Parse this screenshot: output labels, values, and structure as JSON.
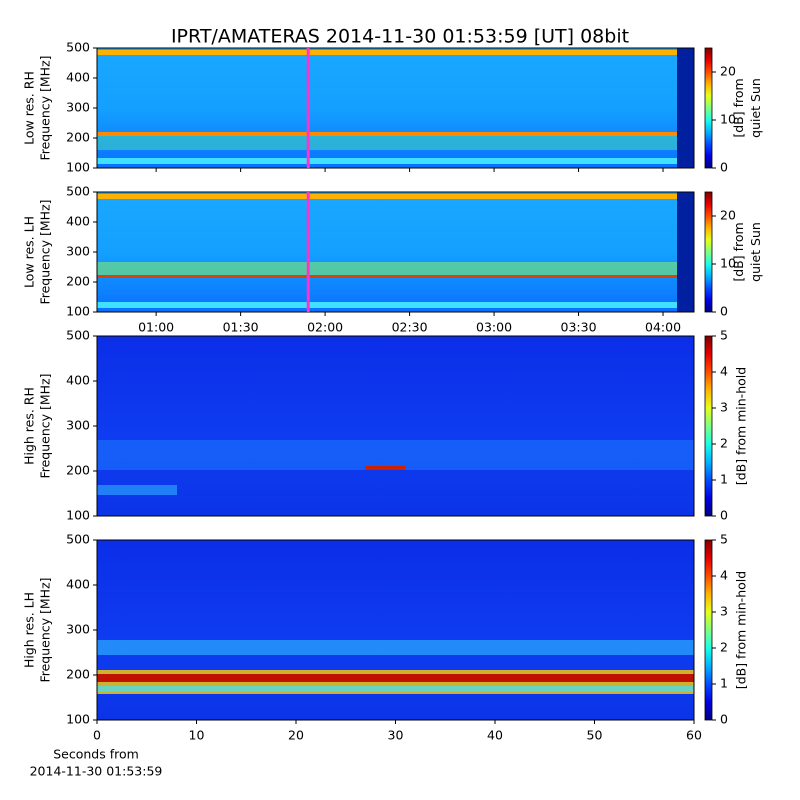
{
  "title": "IPRT/AMATERAS 2014-11-30 01:53:59 [UT]   08bit",
  "chart_data": [
    {
      "type": "heatmap",
      "ylabel": [
        "Low res. RH",
        "Frequency [MHz]"
      ],
      "ylim": [
        100,
        500
      ],
      "yticks": [
        100,
        200,
        300,
        400,
        500
      ],
      "xlim": [
        "00:39",
        "04:11"
      ],
      "cursor": "01:54",
      "cursor_color": "#ff33cc",
      "colormap": "jet",
      "clim": [
        0,
        25
      ],
      "cticks": [
        0,
        10,
        20
      ],
      "clabel": [
        "[dB] from",
        "quiet Sun"
      ]
    },
    {
      "type": "heatmap",
      "ylabel": [
        "Low res. LH",
        "Frequency [MHz]"
      ],
      "ylim": [
        100,
        500
      ],
      "yticks": [
        100,
        200,
        300,
        400,
        500
      ],
      "xlim": [
        "00:39",
        "04:11"
      ],
      "xticks": [
        "01:00",
        "01:30",
        "02:00",
        "02:30",
        "03:00",
        "03:30",
        "04:00"
      ],
      "cursor": "01:54",
      "cursor_color": "#ff33cc",
      "colormap": "jet",
      "clim": [
        0,
        25
      ],
      "cticks": [
        0,
        10,
        20
      ],
      "clabel": [
        "[dB] from",
        "quiet Sun"
      ]
    },
    {
      "type": "heatmap",
      "ylabel": [
        "High res. RH",
        "Frequency [MHz]"
      ],
      "ylim": [
        100,
        500
      ],
      "yticks": [
        100,
        200,
        300,
        400,
        500
      ],
      "colormap": "jet",
      "clim": [
        0,
        5
      ],
      "cticks": [
        0,
        1,
        2,
        3,
        4,
        5
      ],
      "clabel": [
        "[dB] from min-hold"
      ]
    },
    {
      "type": "heatmap",
      "ylabel": [
        "High res. LH",
        "Frequency [MHz]"
      ],
      "ylim": [
        100,
        500
      ],
      "yticks": [
        100,
        200,
        300,
        400,
        500
      ],
      "xlim": [
        0,
        60
      ],
      "xticks": [
        0,
        10,
        20,
        30,
        40,
        50,
        60
      ],
      "xlabel": [
        "Seconds from",
        "2014-11-30 01:53:59"
      ],
      "colormap": "jet",
      "clim": [
        0,
        5
      ],
      "cticks": [
        0,
        1,
        2,
        3,
        4,
        5
      ],
      "clabel": [
        "[dB] from min-hold"
      ]
    }
  ]
}
